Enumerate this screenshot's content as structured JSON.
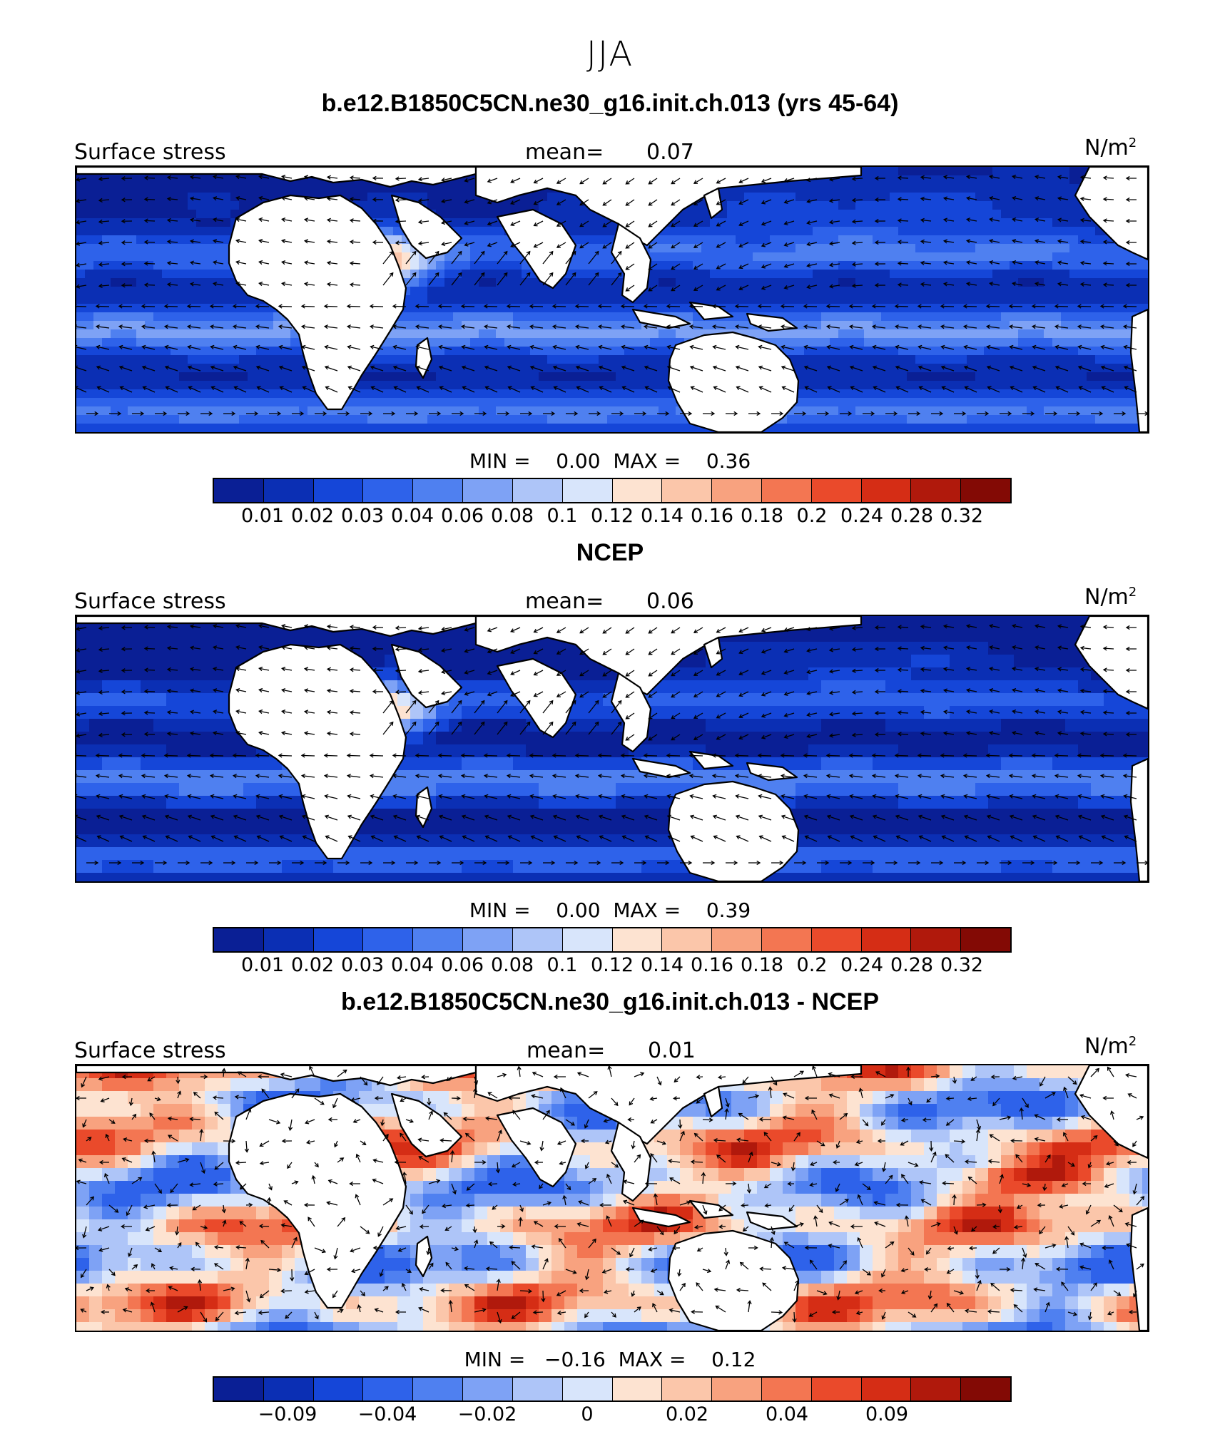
{
  "season_title": "JJA",
  "colors": {
    "positive_palette": [
      "#0a1f95",
      "#0b2fb4",
      "#1546d8",
      "#2e62ea",
      "#4f80f0",
      "#7ea2f5",
      "#aec5f8",
      "#d8e5fb",
      "#fde3d1",
      "#fbc6aa",
      "#f8a27f",
      "#f37652",
      "#ea4a2b",
      "#d52d15",
      "#b0190c",
      "#830a05"
    ],
    "diff_palette": [
      "#0a1f95",
      "#0b2fb4",
      "#1546d8",
      "#2e62ea",
      "#4f80f0",
      "#7ea2f5",
      "#aec5f8",
      "#d8e5fb",
      "#fde3d1",
      "#fbc6aa",
      "#f8a27f",
      "#f37652",
      "#ea4a2b",
      "#d52d15",
      "#b0190c",
      "#830a05"
    ],
    "land": "#ffffff",
    "coast": "#000000"
  },
  "panels": [
    {
      "title": "b.e12.B1850C5CN.ne30_g16.init.ch.013 (yrs 45-64)",
      "variable": "Surface stress",
      "mean_label": "mean=",
      "mean_value": "0.07",
      "units": "N/m",
      "units_sup": "2",
      "min_label": "MIN =",
      "min_value": "0.00",
      "max_label": "MAX =",
      "max_value": "0.36",
      "colorbar_ticks": [
        "0.01",
        "0.02",
        "0.03",
        "0.04",
        "0.06",
        "0.08",
        "0.1",
        "0.12",
        "0.14",
        "0.16",
        "0.18",
        "0.2",
        "0.24",
        "0.28",
        "0.32"
      ],
      "kind": "model"
    },
    {
      "title": "NCEP",
      "variable": "Surface stress",
      "mean_label": "mean=",
      "mean_value": "0.06",
      "units": "N/m",
      "units_sup": "2",
      "min_label": "MIN =",
      "min_value": "0.00",
      "max_label": "MAX =",
      "max_value": "0.39",
      "colorbar_ticks": [
        "0.01",
        "0.02",
        "0.03",
        "0.04",
        "0.06",
        "0.08",
        "0.1",
        "0.12",
        "0.14",
        "0.16",
        "0.18",
        "0.2",
        "0.24",
        "0.28",
        "0.32"
      ],
      "kind": "obs"
    },
    {
      "title": "b.e12.B1850C5CN.ne30_g16.init.ch.013 - NCEP",
      "variable": "Surface stress",
      "mean_label": "mean=",
      "mean_value": "0.01",
      "units": "N/m",
      "units_sup": "2",
      "min_label": "MIN =",
      "min_value": "−0.16",
      "max_label": "MAX =",
      "max_value": "0.12",
      "colorbar_ticks": [
        "−0.09",
        "−0.04",
        "−0.02",
        "0",
        "0.02",
        "0.04",
        "0.09"
      ],
      "colorbar_tick_slots": [
        1.5,
        3.5,
        5.5,
        7.5,
        9.5,
        11.5,
        13.5
      ],
      "kind": "diff"
    }
  ]
}
